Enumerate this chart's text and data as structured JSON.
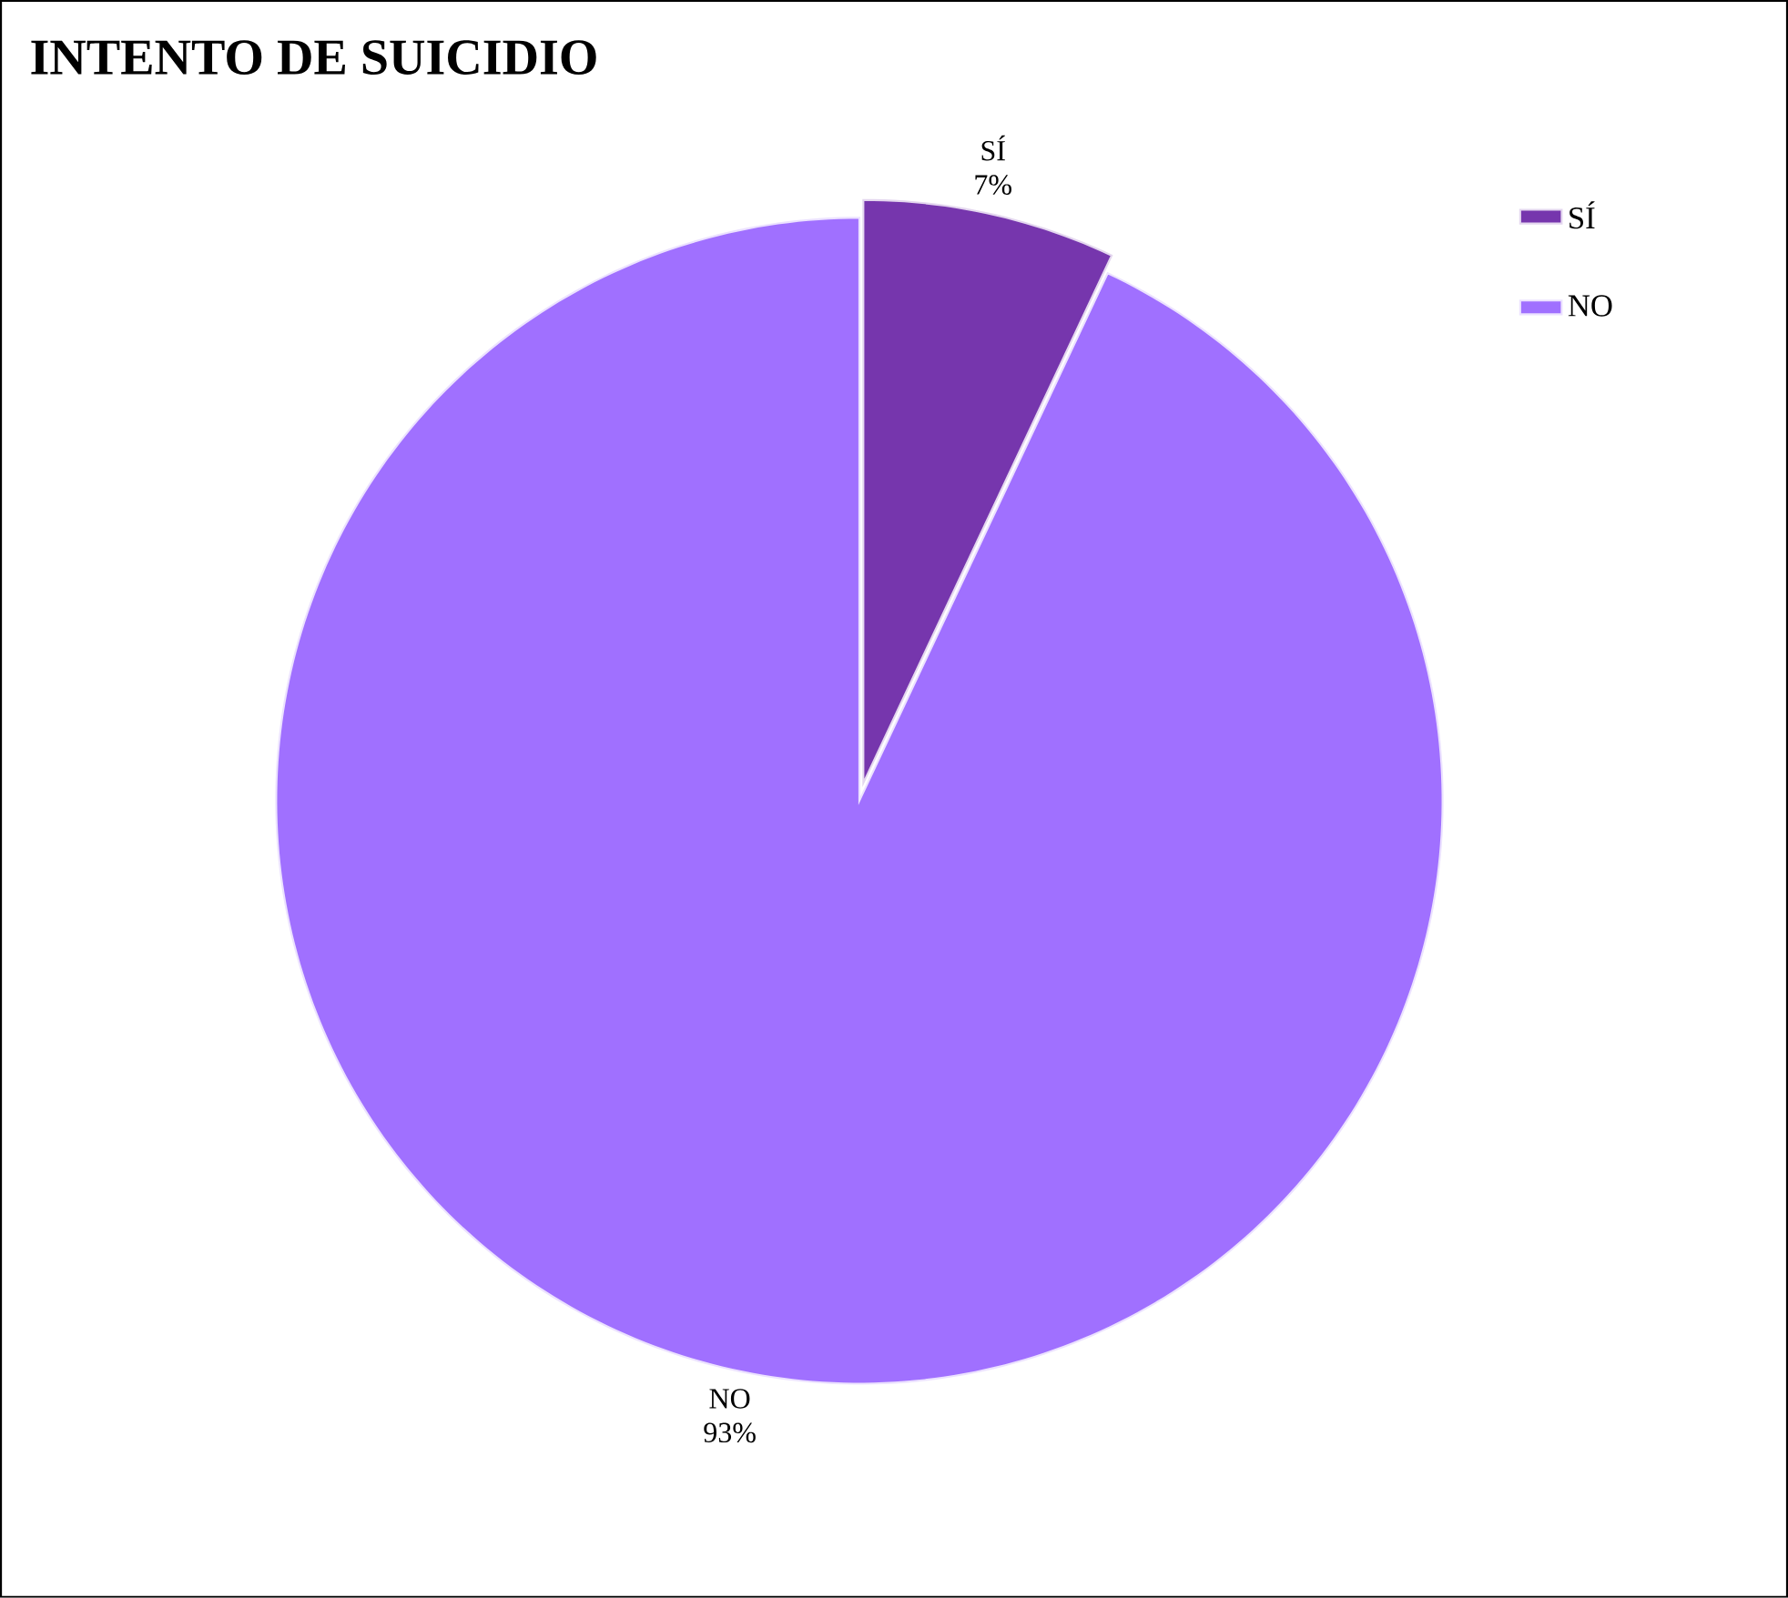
{
  "chart_data": {
    "type": "pie",
    "title": "INTENTO DE SUICIDIO",
    "categories": [
      "SÍ",
      "NO"
    ],
    "values": [
      7,
      93
    ],
    "colors": [
      "#7636ad",
      "#a070ff"
    ],
    "value_labels": [
      "7%",
      "93%"
    ],
    "legend": "top right"
  }
}
